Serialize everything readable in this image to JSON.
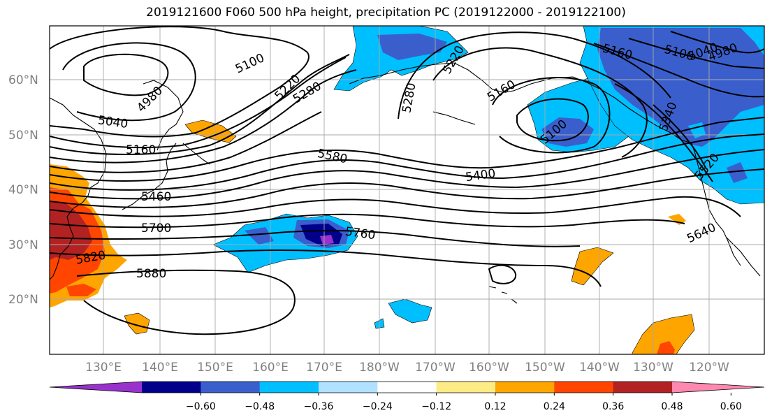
{
  "title": "2019121600 F060 500 hPa height, precipitation PC (2019122000 - 2019122100)",
  "lat_labels": [
    "60°N",
    "50°N",
    "40°N",
    "30°N",
    "20°N"
  ],
  "lon_labels": [
    "130°E",
    "140°E",
    "150°E",
    "160°E",
    "170°E",
    "180°W",
    "170°W",
    "160°W",
    "150°W",
    "140°W",
    "130°W",
    "120°W"
  ],
  "contour_labels": {
    "c5100a": "5100",
    "c4980": "4980",
    "c5220a": "5220",
    "c5280a": "5280",
    "c5040a": "5040",
    "c5160a": "5160",
    "c5580": "5580",
    "c5460": "5460",
    "c5700": "5700",
    "c5760": "5760",
    "c5820": "5820",
    "c5880": "5880",
    "c5220b": "5220",
    "c5280b": "5280",
    "c5160b": "5160",
    "c5100b": "5100",
    "c5400": "5400",
    "c5160c": "5160",
    "c5100c": "5100",
    "c5040b": "5040",
    "c4980b": "4980",
    "c5340": "5340",
    "c5520": "5520",
    "c5640": "5640"
  },
  "colorbar": {
    "colors": [
      "#9932cc",
      "#00008b",
      "#3a5fcd",
      "#00bfff",
      "#b0e2ff",
      "#ffffff",
      "#fdeb85",
      "#ffa500",
      "#ff4500",
      "#b22222",
      "#ff88b0"
    ],
    "ticks": [
      "−0.60",
      "−0.48",
      "−0.36",
      "−0.24",
      "−0.12",
      "0.12",
      "0.24",
      "0.36",
      "0.48",
      "0.60"
    ]
  }
}
